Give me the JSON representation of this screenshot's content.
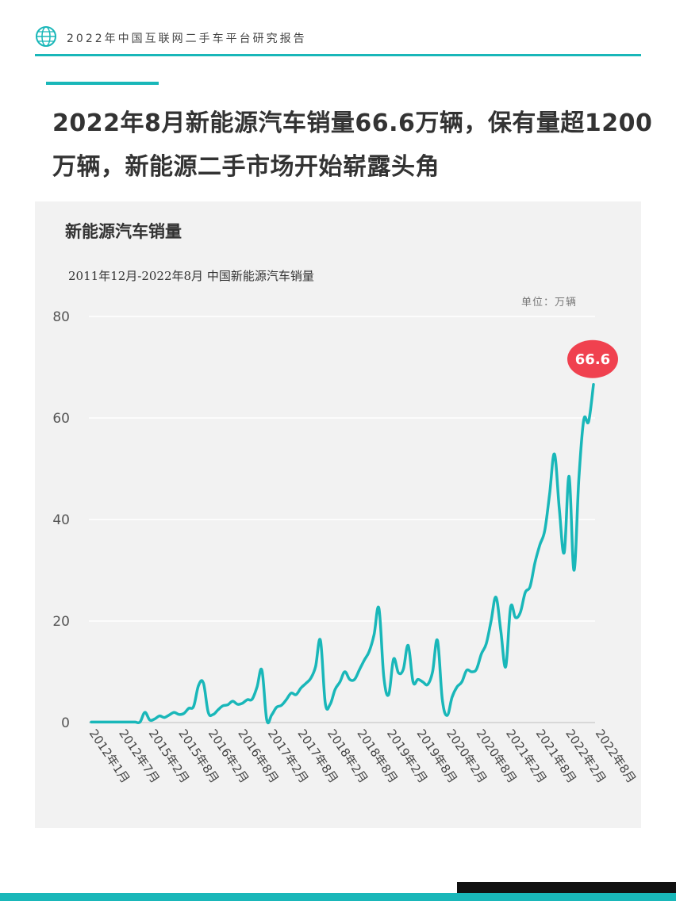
{
  "header": {
    "report_title": "2022年中国互联网二手车平台研究报告",
    "logo_icon": "globe-icon"
  },
  "headline": "2022年8月新能源汽车销量66.6万辆，保有量超1200万辆，新能源二手市场开始崭露头角",
  "colors": {
    "accent": "#19b7b9",
    "highlight": "#f0414f",
    "panel": "#f2f2f2"
  },
  "chart_data": {
    "type": "line",
    "title": "新能源汽车销量",
    "subtitle": "2011年12月-2022年8月 中国新能源汽车销量",
    "unit": "单位：万辆",
    "ylim": [
      0,
      80
    ],
    "yticks": [
      0,
      20,
      40,
      60,
      80
    ],
    "grid": true,
    "x_tick_labels": [
      "2012年1月",
      "2012年7月",
      "2015年2月",
      "2015年8月",
      "2016年2月",
      "2016年8月",
      "2017年2月",
      "2017年8月",
      "2018年2月",
      "2018年8月",
      "2019年2月",
      "2019年8月",
      "2020年2月",
      "2020年8月",
      "2021年2月",
      "2021年8月",
      "2022年2月",
      "2022年8月"
    ],
    "series": [
      {
        "values": [
          0.1,
          0.1,
          0.1,
          0.1,
          0.1,
          0.1,
          0.1,
          0.1,
          0.1,
          0.1,
          0.1,
          2.0,
          0.5,
          0.7,
          1.3,
          1.0,
          1.5,
          2.0,
          1.6,
          1.8,
          2.8,
          3.2,
          7.3,
          7.8,
          2.0,
          1.6,
          2.5,
          3.3,
          3.5,
          4.2,
          3.6,
          3.8,
          4.5,
          4.6,
          7.0,
          10.3,
          0.5,
          1.5,
          3.0,
          3.4,
          4.5,
          5.8,
          5.5,
          6.8,
          7.7,
          8.7,
          11.0,
          16.2,
          3.8,
          3.6,
          6.5,
          8.0,
          10.0,
          8.5,
          8.5,
          10.4,
          12.3,
          14.0,
          17.3,
          22.5,
          9.0,
          5.5,
          12.5,
          9.8,
          10.5,
          15.2,
          8.0,
          8.5,
          8.0,
          7.5,
          10.0,
          16.2,
          4.5,
          1.4,
          5.0,
          7.0,
          8.0,
          10.3,
          10.0,
          10.5,
          13.5,
          15.5,
          20.0,
          24.7,
          18.0,
          11.0,
          22.7,
          20.7,
          21.7,
          25.6,
          26.8,
          31.5,
          35.0,
          37.8,
          45.0,
          52.9,
          42.0,
          33.5,
          48.5,
          30.0,
          48.0,
          59.6,
          59.3,
          66.6
        ],
        "last_value_label": "66.6"
      }
    ]
  }
}
